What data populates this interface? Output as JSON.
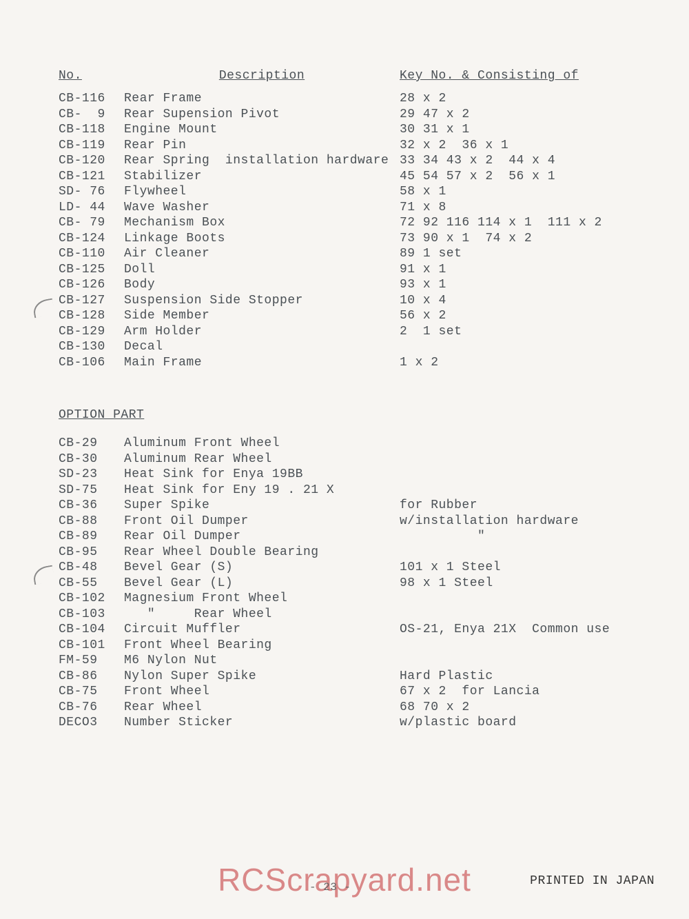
{
  "header": {
    "no": "No.",
    "description": "Description",
    "key": "Key No. & Consisting of"
  },
  "parts": [
    {
      "no": "CB-116",
      "desc": "Rear Frame",
      "key": "28 x 2"
    },
    {
      "no": "CB-  9",
      "desc": "Rear Supension Pivot",
      "key": "29 47 x 2"
    },
    {
      "no": "CB-118",
      "desc": "Engine Mount",
      "key": "30 31 x 1"
    },
    {
      "no": "CB-119",
      "desc": "Rear Pin",
      "key": "32 x 2  36 x 1"
    },
    {
      "no": "CB-120",
      "desc": "Rear Spring  installation hardware",
      "key": "33 34 43 x 2  44 x 4"
    },
    {
      "no": "CB-121",
      "desc": "Stabilizer",
      "key": "45 54 57 x 2  56 x 1"
    },
    {
      "no": "SD- 76",
      "desc": "Flywheel",
      "key": "58 x 1"
    },
    {
      "no": "LD- 44",
      "desc": "Wave Washer",
      "key": "71 x 8"
    },
    {
      "no": "CB- 79",
      "desc": "Mechanism Box",
      "key": "72 92 116 114 x 1  111 x 2"
    },
    {
      "no": "CB-124",
      "desc": "Linkage Boots",
      "key": "73 90 x 1  74 x 2"
    },
    {
      "no": "CB-110",
      "desc": "Air Cleaner",
      "key": "89 1 set"
    },
    {
      "no": "CB-125",
      "desc": "Doll",
      "key": "91 x 1"
    },
    {
      "no": "CB-126",
      "desc": "Body",
      "key": "93 x 1"
    },
    {
      "no": "CB-127",
      "desc": "Suspension Side Stopper",
      "key": "10 x 4"
    },
    {
      "no": "CB-128",
      "desc": "Side Member",
      "key": "56 x 2"
    },
    {
      "no": "CB-129",
      "desc": "Arm Holder",
      "key": "2  1 set"
    },
    {
      "no": "CB-130",
      "desc": "Decal",
      "key": ""
    },
    {
      "no": "CB-106",
      "desc": "Main Frame",
      "key": "1 x 2"
    }
  ],
  "optionTitle": "OPTION  PART",
  "options": [
    {
      "no": "CB-29 ",
      "desc": "Aluminum Front Wheel",
      "key": ""
    },
    {
      "no": "CB-30 ",
      "desc": "Aluminum Rear Wheel",
      "key": ""
    },
    {
      "no": "SD-23 ",
      "desc": "Heat Sink for Enya 19BB",
      "key": ""
    },
    {
      "no": "SD-75 ",
      "desc": "Heat Sink for Eny 19 . 21 X",
      "key": ""
    },
    {
      "no": "CB-36 ",
      "desc": "Super Spike",
      "key": "for Rubber"
    },
    {
      "no": "CB-88 ",
      "desc": "Front Oil Dumper",
      "key": "w/installation hardware"
    },
    {
      "no": "CB-89 ",
      "desc": "Rear Oil Dumper",
      "key": "          \""
    },
    {
      "no": "CB-95 ",
      "desc": "Rear Wheel Double Bearing",
      "key": ""
    },
    {
      "no": "CB-48 ",
      "desc": "Bevel Gear (S)",
      "key": "101 x 1 Steel"
    },
    {
      "no": "CB-55 ",
      "desc": "Bevel Gear (L)",
      "key": "98 x 1 Steel"
    },
    {
      "no": "CB-102",
      "desc": "Magnesium Front Wheel",
      "key": ""
    },
    {
      "no": "CB-103",
      "desc": "   \"     Rear Wheel",
      "key": ""
    },
    {
      "no": "CB-104",
      "desc": "Circuit Muffler",
      "key": "OS-21, Enya 21X  Common use"
    },
    {
      "no": "CB-101",
      "desc": "Front Wheel Bearing",
      "key": ""
    },
    {
      "no": "FM-59 ",
      "desc": "M6 Nylon Nut",
      "key": ""
    },
    {
      "no": "CB-86 ",
      "desc": "Nylon Super Spike",
      "key": "Hard Plastic"
    },
    {
      "no": "CB-75 ",
      "desc": "Front Wheel",
      "key": "67 x 2  for Lancia"
    },
    {
      "no": "CB-76 ",
      "desc": "Rear Wheel",
      "key": "68 70 x 2"
    },
    {
      "no": "DECO3 ",
      "desc": "Number Sticker",
      "key": "w/plastic board"
    }
  ],
  "watermark": "RCScrapyard.net",
  "printed": "PRINTED IN JAPAN",
  "pageNum": "- 23 -"
}
